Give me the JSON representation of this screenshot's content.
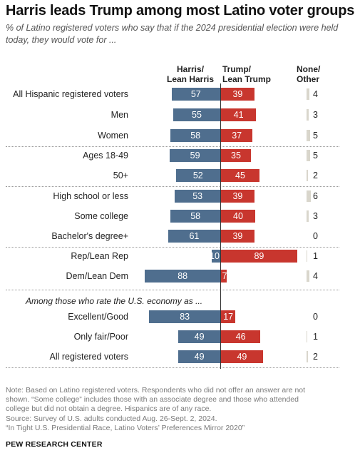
{
  "header": {
    "title": "Harris leads Trump among most Latino voter groups",
    "subtitle": "% of Latino registered voters who say that if the 2024 presidential election were held today, they would vote for ..."
  },
  "columns": {
    "harris": [
      "Harris/",
      "Lean Harris"
    ],
    "trump": [
      "Trump/",
      "Lean Trump"
    ],
    "none": [
      "None/",
      "Other"
    ]
  },
  "colors": {
    "harris": "#4f6e8e",
    "trump": "#c8362e",
    "none": "#d9d6cc"
  },
  "chart_data": {
    "type": "bar",
    "orientation": "horizontal-diverging",
    "categories": [
      "All Hispanic registered voters",
      "Men",
      "Women",
      "Ages 18-49",
      "50+",
      "High school or less",
      "Some college",
      "Bachelor's degree+",
      "Rep/Lean Rep",
      "Dem/Lean Dem",
      "Excellent/Good",
      "Only fair/Poor",
      "All registered voters"
    ],
    "series": [
      {
        "name": "Harris/Lean Harris",
        "values": [
          57,
          55,
          58,
          59,
          52,
          53,
          58,
          61,
          10,
          88,
          83,
          49,
          49
        ]
      },
      {
        "name": "Trump/Lean Trump",
        "values": [
          39,
          41,
          37,
          35,
          45,
          39,
          40,
          39,
          89,
          7,
          17,
          46,
          49
        ]
      },
      {
        "name": "None/Other",
        "values": [
          4,
          3,
          5,
          5,
          2,
          6,
          3,
          0,
          1,
          4,
          0,
          1,
          2
        ]
      }
    ],
    "section_label": "Among those who rate the U.S. economy as ..."
  },
  "footer": {
    "note_lines": [
      "Note: Based on Latino registered voters. Respondents who did not offer an answer are not",
      "shown. “Some college” includes those with an associate degree and those who attended",
      "college but did not obtain a degree. Hispanics are of any race.",
      "Source: Survey of U.S. adults conducted Aug. 26-Sept. 2, 2024.",
      "“In Tight U.S. Presidential Race, Latino Voters’ Preferences Mirror 2020”"
    ],
    "brand": "PEW RESEARCH CENTER"
  }
}
